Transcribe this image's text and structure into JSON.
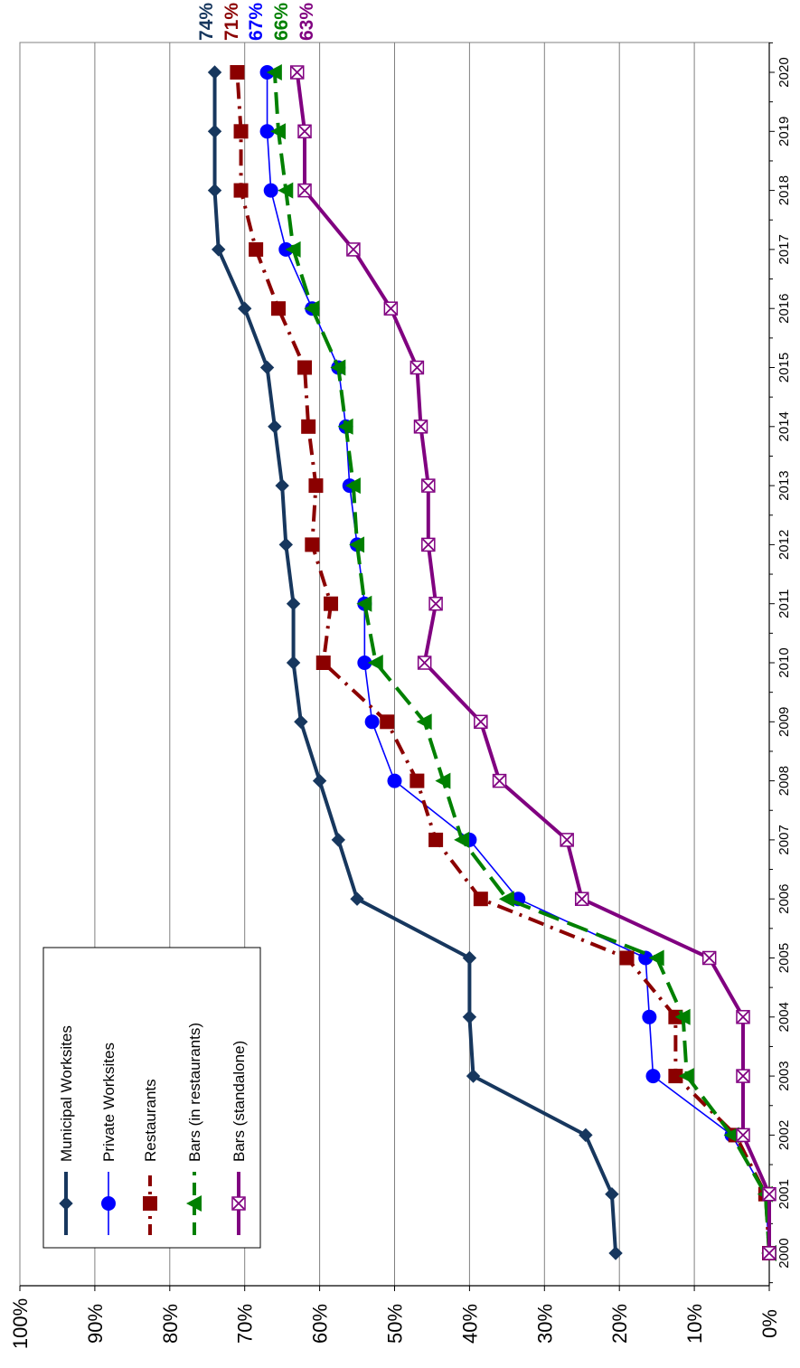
{
  "chart_data": {
    "type": "line",
    "orientation": "rotated-90-clockwise",
    "x": [
      "2000",
      "2001",
      "2002",
      "2003",
      "2004",
      "2005",
      "2006",
      "2007",
      "2008",
      "2009",
      "2010",
      "2011",
      "2012",
      "2013",
      "2014",
      "2015",
      "2016",
      "2017",
      "2018",
      "2019",
      "2020"
    ],
    "y_ticks": [
      "0%",
      "10%",
      "20%",
      "30%",
      "40%",
      "50%",
      "60%",
      "70%",
      "80%",
      "90%",
      "100%"
    ],
    "ylim": [
      0,
      100
    ],
    "grid": "horizontal gridlines at every 10%",
    "legend_position": "lower-left box",
    "series": [
      {
        "name": "Municipal Worksites",
        "color": "#17375E",
        "marker": "diamond",
        "line_style": "solid",
        "end_label": "74%",
        "values": [
          20.5,
          21,
          24.5,
          39.5,
          40,
          40,
          55,
          57.5,
          60,
          62.5,
          63.5,
          63.5,
          64.5,
          65,
          66,
          67,
          70,
          73.5,
          74,
          74,
          74
        ]
      },
      {
        "name": "Private Worksites",
        "color": "#0000FF",
        "marker": "circle",
        "line_style": "solid-thin",
        "end_label": "67%",
        "values": [
          0,
          0.5,
          5,
          15.5,
          16,
          16.5,
          33.5,
          40,
          50,
          53,
          54,
          54,
          55,
          56,
          56.5,
          57.5,
          61,
          64.5,
          66.5,
          67,
          67
        ]
      },
      {
        "name": "Restaurants",
        "color": "#8B0000",
        "marker": "square",
        "line_style": "dash-dot",
        "end_label": "71%",
        "values": [
          0,
          0.5,
          4.5,
          12.5,
          12.5,
          19,
          38.5,
          44.5,
          47,
          51,
          59.5,
          58.5,
          61,
          60.5,
          61.5,
          62,
          65.5,
          68.5,
          70.5,
          70.5,
          71
        ]
      },
      {
        "name": "Bars (in restaurants)",
        "color": "#008000",
        "marker": "triangle",
        "line_style": "long-dash",
        "end_label": "66%",
        "values": [
          0,
          0.5,
          5,
          11,
          11.5,
          15,
          35,
          41,
          43.5,
          46,
          52.5,
          54,
          55,
          55.5,
          56.5,
          57.5,
          61,
          63.5,
          64.5,
          65.5,
          66
        ]
      },
      {
        "name": "Bars (standalone)",
        "color": "#800080",
        "marker": "x-box",
        "line_style": "solid-thick",
        "end_label": "63%",
        "values": [
          0,
          0,
          3.5,
          3.5,
          3.5,
          8,
          25,
          27,
          36,
          38.5,
          46,
          44.5,
          45.5,
          45.5,
          46.5,
          47,
          50.5,
          55.5,
          62,
          62,
          63
        ]
      }
    ]
  }
}
